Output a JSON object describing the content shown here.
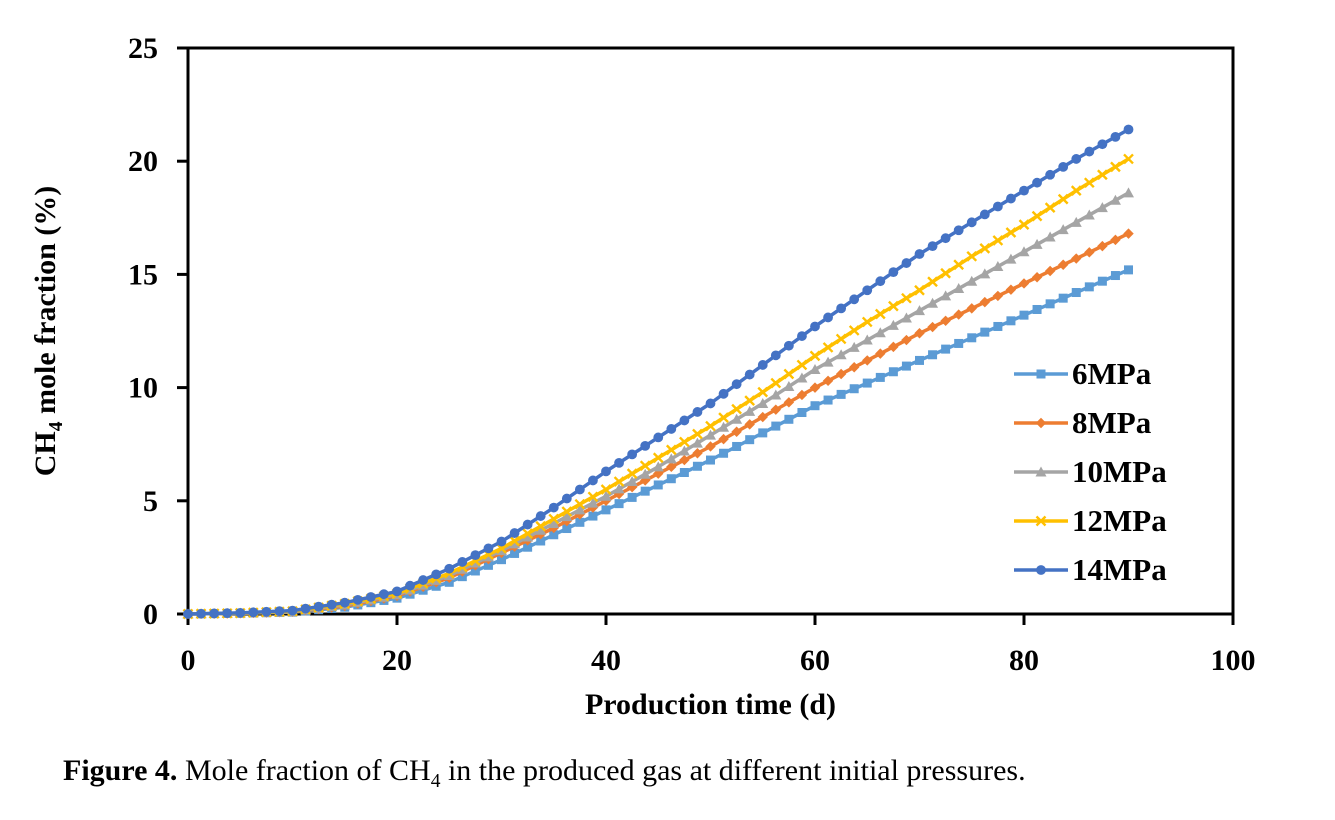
{
  "page": {
    "background": "#ffffff"
  },
  "figure": {
    "caption_label": "Figure 4.",
    "caption_pre": " Mole fraction of CH",
    "caption_sub": "4",
    "caption_post": " in the produced gas at different initial pressures."
  },
  "chart_data": {
    "type": "line",
    "title": "",
    "xlabel": "Production time (d)",
    "ylabel": "CH4 mole fraction (%)",
    "ylabel_prefix": "CH",
    "ylabel_sub": "4",
    "ylabel_suffix": " mole fraction (%)",
    "xlim": [
      0,
      100
    ],
    "ylim": [
      0,
      25
    ],
    "x_ticks": [
      0,
      20,
      40,
      60,
      80,
      100
    ],
    "y_ticks": [
      0,
      5,
      10,
      15,
      20,
      25
    ],
    "grid": false,
    "legend_position": "inside right",
    "axis_color": "#000000",
    "marker_interval_d": 1.25,
    "x": [
      0,
      5,
      10,
      15,
      20,
      25,
      30,
      35,
      40,
      45,
      50,
      55,
      60,
      65,
      70,
      75,
      80,
      85,
      90
    ],
    "series": [
      {
        "name": "6MPa",
        "color": "#5B9BD5",
        "marker": "square",
        "values": [
          0,
          0.03,
          0.08,
          0.3,
          0.7,
          1.4,
          2.4,
          3.5,
          4.6,
          5.7,
          6.8,
          8.0,
          9.2,
          10.2,
          11.2,
          12.2,
          13.2,
          14.2,
          15.2
        ]
      },
      {
        "name": "8MPa",
        "color": "#ED7D31",
        "marker": "diamond",
        "values": [
          0,
          0.03,
          0.1,
          0.35,
          0.8,
          1.6,
          2.7,
          3.8,
          5.0,
          6.2,
          7.4,
          8.7,
          10.0,
          11.2,
          12.4,
          13.5,
          14.6,
          15.7,
          16.8
        ]
      },
      {
        "name": "10MPa",
        "color": "#A5A5A5",
        "marker": "triangle",
        "values": [
          0,
          0.04,
          0.1,
          0.4,
          0.85,
          1.7,
          2.8,
          4.0,
          5.2,
          6.5,
          7.9,
          9.3,
          10.8,
          12.1,
          13.4,
          14.7,
          16.0,
          17.3,
          18.6
        ]
      },
      {
        "name": "12MPa",
        "color": "#FFC000",
        "marker": "x",
        "values": [
          0,
          0.04,
          0.12,
          0.45,
          0.9,
          1.8,
          2.9,
          4.2,
          5.5,
          6.9,
          8.3,
          9.8,
          11.4,
          12.9,
          14.3,
          15.8,
          17.2,
          18.7,
          20.1
        ]
      },
      {
        "name": "14MPa",
        "color": "#4472C4",
        "marker": "circle",
        "values": [
          0,
          0.05,
          0.15,
          0.5,
          1.0,
          2.0,
          3.2,
          4.7,
          6.3,
          7.8,
          9.3,
          11.0,
          12.7,
          14.3,
          15.9,
          17.3,
          18.7,
          20.1,
          21.4
        ]
      }
    ]
  }
}
